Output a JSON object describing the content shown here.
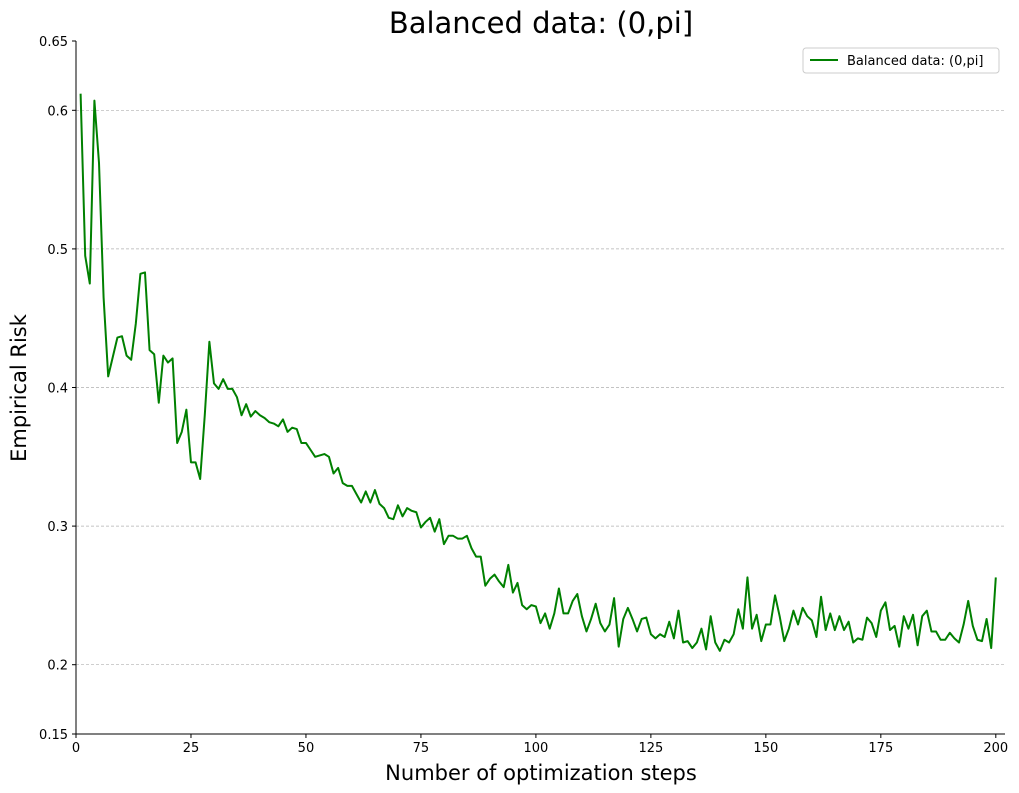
{
  "chart_data": {
    "type": "line",
    "title": "Balanced data: (0,pi]",
    "xlabel": "Number of optimization steps",
    "ylabel": "Empirical Risk",
    "xlim": [
      0,
      202
    ],
    "ylim": [
      0.15,
      0.65
    ],
    "xticks": [
      0,
      25,
      50,
      75,
      100,
      125,
      150,
      175,
      200
    ],
    "xtick_labels": [
      "0",
      "25",
      "50",
      "75",
      "100",
      "125",
      "150",
      "175",
      "200"
    ],
    "yticks": [
      0.15,
      0.2,
      0.3,
      0.4,
      0.5,
      0.6,
      0.65
    ],
    "ytick_labels": [
      "0.15",
      "0.2",
      "0.3",
      "0.4",
      "0.5",
      "0.6",
      "0.65"
    ],
    "grid": "horizontal dashed at 0.2, 0.3, 0.4, 0.5, 0.6",
    "legend_position": "top-right",
    "series": [
      {
        "name": "Balanced data: (0,pi]",
        "color": "#008000",
        "x": [
          1,
          2,
          3,
          4,
          5,
          6,
          7,
          8,
          9,
          10,
          11,
          12,
          13,
          14,
          15,
          16,
          17,
          18,
          19,
          20,
          21,
          22,
          23,
          24,
          25,
          26,
          27,
          28,
          29,
          30,
          31,
          32,
          33,
          34,
          35,
          36,
          37,
          38,
          39,
          40,
          41,
          42,
          43,
          44,
          45,
          46,
          47,
          48,
          49,
          50,
          51,
          52,
          53,
          54,
          55,
          56,
          57,
          58,
          59,
          60,
          61,
          62,
          63,
          64,
          65,
          66,
          67,
          68,
          69,
          70,
          71,
          72,
          73,
          74,
          75,
          76,
          77,
          78,
          79,
          80,
          81,
          82,
          83,
          84,
          85,
          86,
          87,
          88,
          89,
          90,
          91,
          92,
          93,
          94,
          95,
          96,
          97,
          98,
          99,
          100,
          101,
          102,
          103,
          104,
          105,
          106,
          107,
          108,
          109,
          110,
          111,
          112,
          113,
          114,
          115,
          116,
          117,
          118,
          119,
          120,
          121,
          122,
          123,
          124,
          125,
          126,
          127,
          128,
          129,
          130,
          131,
          132,
          133,
          134,
          135,
          136,
          137,
          138,
          139,
          140,
          141,
          142,
          143,
          144,
          145,
          146,
          147,
          148,
          149,
          150,
          151,
          152,
          153,
          154,
          155,
          156,
          157,
          158,
          159,
          160,
          161,
          162,
          163,
          164,
          165,
          166,
          167,
          168,
          169,
          170,
          171,
          172,
          173,
          174,
          175,
          176,
          177,
          178,
          179,
          180,
          181,
          182,
          183,
          184,
          185,
          186,
          187,
          188,
          189,
          190,
          191,
          192,
          193,
          194,
          195,
          196,
          197,
          198,
          199,
          200
        ],
        "values": [
          0.612,
          0.495,
          0.475,
          0.607,
          0.562,
          0.465,
          0.408,
          0.422,
          0.436,
          0.437,
          0.423,
          0.42,
          0.446,
          0.482,
          0.483,
          0.427,
          0.424,
          0.389,
          0.423,
          0.418,
          0.421,
          0.36,
          0.368,
          0.384,
          0.346,
          0.346,
          0.334,
          0.38,
          0.433,
          0.403,
          0.399,
          0.406,
          0.399,
          0.399,
          0.393,
          0.38,
          0.388,
          0.379,
          0.383,
          0.38,
          0.378,
          0.375,
          0.374,
          0.372,
          0.377,
          0.368,
          0.371,
          0.37,
          0.36,
          0.36,
          0.355,
          0.35,
          0.351,
          0.352,
          0.35,
          0.338,
          0.342,
          0.331,
          0.329,
          0.329,
          0.323,
          0.317,
          0.325,
          0.317,
          0.326,
          0.316,
          0.313,
          0.306,
          0.305,
          0.315,
          0.307,
          0.313,
          0.311,
          0.31,
          0.299,
          0.303,
          0.306,
          0.296,
          0.305,
          0.287,
          0.293,
          0.293,
          0.291,
          0.291,
          0.293,
          0.284,
          0.278,
          0.278,
          0.257,
          0.262,
          0.265,
          0.26,
          0.256,
          0.272,
          0.252,
          0.259,
          0.243,
          0.24,
          0.243,
          0.242,
          0.23,
          0.237,
          0.226,
          0.237,
          0.255,
          0.237,
          0.237,
          0.246,
          0.251,
          0.235,
          0.224,
          0.233,
          0.244,
          0.23,
          0.224,
          0.229,
          0.248,
          0.213,
          0.233,
          0.241,
          0.233,
          0.224,
          0.233,
          0.234,
          0.222,
          0.219,
          0.222,
          0.22,
          0.231,
          0.219,
          0.239,
          0.216,
          0.217,
          0.212,
          0.216,
          0.226,
          0.211,
          0.235,
          0.216,
          0.21,
          0.218,
          0.216,
          0.222,
          0.24,
          0.226,
          0.263,
          0.226,
          0.236,
          0.217,
          0.229,
          0.229,
          0.25,
          0.235,
          0.217,
          0.226,
          0.239,
          0.229,
          0.241,
          0.235,
          0.232,
          0.22,
          0.249,
          0.225,
          0.237,
          0.225,
          0.235,
          0.225,
          0.231,
          0.216,
          0.219,
          0.218,
          0.234,
          0.23,
          0.22,
          0.239,
          0.245,
          0.225,
          0.228,
          0.213,
          0.235,
          0.226,
          0.236,
          0.214,
          0.235,
          0.239,
          0.224,
          0.224,
          0.218,
          0.218,
          0.223,
          0.219,
          0.216,
          0.229,
          0.246,
          0.228,
          0.218,
          0.217,
          0.233,
          0.212,
          0.263
        ]
      }
    ]
  }
}
